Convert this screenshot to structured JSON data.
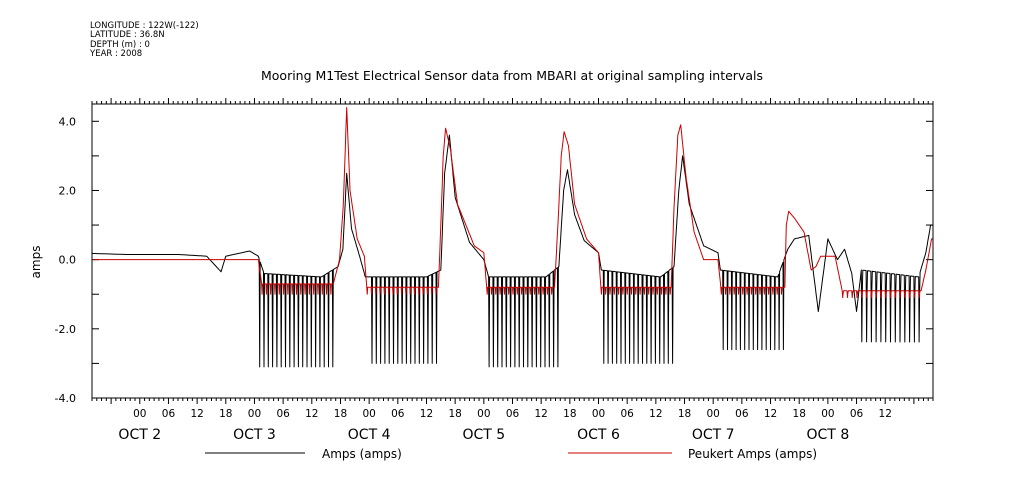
{
  "metadata": {
    "longitude": "LONGITUDE : 122W(-122)",
    "latitude": "LATITUDE : 36.8N",
    "depth": "DEPTH (m) : 0",
    "year": "YEAR : 2008"
  },
  "chart_data": {
    "type": "line",
    "title": "Mooring M1Test Electrical Sensor data from MBARI at original sampling intervals",
    "ylabel": "amps",
    "xlabel": "",
    "ylim": [
      -4.0,
      4.5
    ],
    "xlim_hours": [
      -10,
      166
    ],
    "y_ticks": [
      {
        "value": 4.0,
        "label": "4.0"
      },
      {
        "value": 2.0,
        "label": "2.0"
      },
      {
        "value": 0.0,
        "label": "0.0"
      },
      {
        "value": -2.0,
        "label": "-2.0"
      },
      {
        "value": -4.0,
        "label": "-4.0"
      }
    ],
    "hour_tick_labels": [
      "00",
      "06",
      "12",
      "18",
      "00",
      "06",
      "12",
      "18",
      "00",
      "06",
      "12",
      "18",
      "00",
      "06",
      "12",
      "18",
      "00",
      "06",
      "12",
      "18",
      "00",
      "06",
      "12",
      "18",
      "00",
      "06",
      "12"
    ],
    "day_labels": [
      {
        "label": "OCT  2",
        "hour": 0
      },
      {
        "label": "OCT  3",
        "hour": 24
      },
      {
        "label": "OCT  4",
        "hour": 48
      },
      {
        "label": "OCT  5",
        "hour": 72
      },
      {
        "label": "OCT  6",
        "hour": 96
      },
      {
        "label": "OCT  7",
        "hour": 120
      },
      {
        "label": "OCT  8",
        "hour": 144
      }
    ],
    "series": [
      {
        "name": "Amps (amps)",
        "color": "#000000",
        "baseline": [
          [
            -10,
            0.18
          ],
          [
            -3,
            0.15
          ],
          [
            8,
            0.15
          ],
          [
            14,
            0.1
          ],
          [
            17,
            -0.35
          ],
          [
            18,
            0.1
          ],
          [
            23,
            0.25
          ],
          [
            24.8,
            0.1
          ],
          [
            26,
            -0.4
          ],
          [
            38,
            -0.5
          ],
          [
            41.5,
            -0.2
          ],
          [
            42.5,
            0.3
          ],
          [
            43.3,
            2.5
          ],
          [
            44.3,
            0.9
          ],
          [
            46,
            0.1
          ],
          [
            47.2,
            -0.5
          ],
          [
            60,
            -0.5
          ],
          [
            63,
            -0.3
          ],
          [
            63.8,
            2.5
          ],
          [
            64.8,
            3.6
          ],
          [
            66,
            1.8
          ],
          [
            69,
            0.5
          ],
          [
            72,
            0.0
          ],
          [
            73,
            -0.5
          ],
          [
            85,
            -0.5
          ],
          [
            87.7,
            -0.2
          ],
          [
            88.7,
            2.0
          ],
          [
            89.5,
            2.6
          ],
          [
            91,
            1.3
          ],
          [
            93,
            0.55
          ],
          [
            96,
            0.2
          ],
          [
            96.6,
            -0.3
          ],
          [
            109,
            -0.5
          ],
          [
            111.8,
            -0.2
          ],
          [
            112.8,
            2.0
          ],
          [
            113.6,
            3.0
          ],
          [
            115,
            1.6
          ],
          [
            118,
            0.4
          ],
          [
            121,
            0.2
          ],
          [
            121.5,
            -0.3
          ],
          [
            133.5,
            -0.5
          ],
          [
            135.6,
            0.3
          ],
          [
            137,
            0.6
          ],
          [
            140,
            0.7
          ],
          [
            142,
            -1.5
          ],
          [
            144,
            0.6
          ],
          [
            146,
            0.0
          ],
          [
            147.5,
            0.3
          ],
          [
            149,
            -0.4
          ],
          [
            150,
            -1.5
          ],
          [
            151,
            -0.3
          ],
          [
            163,
            -0.5
          ],
          [
            164.5,
            0.2
          ],
          [
            165.5,
            1.0
          ]
        ],
        "dips": [
          {
            "from": 25,
            "to": 41,
            "step": 0.9,
            "min": -3.1
          },
          {
            "from": 48.5,
            "to": 63,
            "step": 0.9,
            "min": -3.0
          },
          {
            "from": 73,
            "to": 87.5,
            "step": 0.9,
            "min": -3.1
          },
          {
            "from": 97,
            "to": 111.5,
            "step": 0.9,
            "min": -3.0
          },
          {
            "from": 122,
            "to": 135,
            "step": 0.9,
            "min": -2.6
          },
          {
            "from": 151,
            "to": 164,
            "step": 1.0,
            "min": -2.4
          }
        ]
      },
      {
        "name": "Peukert Amps (amps)",
        "color": "#cc0000",
        "baseline": [
          [
            -10,
            0.0
          ],
          [
            24.8,
            0.0
          ],
          [
            25.5,
            -0.7
          ],
          [
            40.5,
            -0.7
          ],
          [
            41.8,
            0.0
          ],
          [
            42.6,
            1.6
          ],
          [
            43.3,
            4.4
          ],
          [
            44,
            2.0
          ],
          [
            45.5,
            0.6
          ],
          [
            47,
            0.1
          ],
          [
            47.5,
            -0.8
          ],
          [
            62.5,
            -0.8
          ],
          [
            63,
            1.0
          ],
          [
            63.5,
            3.0
          ],
          [
            64,
            3.8
          ],
          [
            65,
            3.2
          ],
          [
            66.5,
            1.6
          ],
          [
            70,
            0.4
          ],
          [
            72,
            0.2
          ],
          [
            72.6,
            -0.8
          ],
          [
            86.8,
            -0.8
          ],
          [
            87.5,
            1.0
          ],
          [
            88.2,
            3.0
          ],
          [
            88.8,
            3.7
          ],
          [
            89.7,
            3.3
          ],
          [
            91,
            1.6
          ],
          [
            93.5,
            0.6
          ],
          [
            96,
            0.2
          ],
          [
            96.5,
            -0.8
          ],
          [
            111.2,
            -0.8
          ],
          [
            111.8,
            1.5
          ],
          [
            112.6,
            3.6
          ],
          [
            113.2,
            3.9
          ],
          [
            114.3,
            2.4
          ],
          [
            116,
            0.8
          ],
          [
            118,
            0.0
          ],
          [
            121,
            0.0
          ],
          [
            121.6,
            -0.8
          ],
          [
            135,
            -0.8
          ],
          [
            135.3,
            1.0
          ],
          [
            135.8,
            1.4
          ],
          [
            137,
            1.2
          ],
          [
            139,
            0.8
          ],
          [
            140.5,
            -0.3
          ],
          [
            141.5,
            -0.2
          ],
          [
            142.5,
            0.1
          ],
          [
            145.5,
            0.1
          ],
          [
            147,
            -0.9
          ],
          [
            163.5,
            -0.9
          ],
          [
            164.5,
            -0.3
          ],
          [
            165.7,
            0.6
          ]
        ],
        "dips": [
          {
            "from": 25.5,
            "to": 40.5,
            "step": 0.9,
            "min": -1.0
          },
          {
            "from": 47.5,
            "to": 62.5,
            "step": 0.9,
            "min": -1.0
          },
          {
            "from": 72.6,
            "to": 86.8,
            "step": 0.9,
            "min": -1.0
          },
          {
            "from": 96.5,
            "to": 111.2,
            "step": 0.9,
            "min": -1.0
          },
          {
            "from": 121.6,
            "to": 135,
            "step": 0.9,
            "min": -1.0
          },
          {
            "from": 147,
            "to": 163.5,
            "step": 1.0,
            "min": -1.1
          }
        ]
      }
    ]
  }
}
